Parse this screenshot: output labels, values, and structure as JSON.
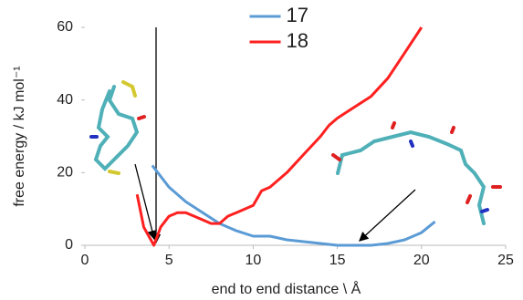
{
  "chart_data": {
    "type": "line",
    "xlabel": "end to end distance \\ Å",
    "ylabel": "free energy / kJ mol⁻¹",
    "xlim": [
      0,
      25
    ],
    "xticks": [
      0,
      5,
      10,
      15,
      20,
      25
    ],
    "ylim": [
      0,
      60
    ],
    "yticks": [
      0,
      20,
      40,
      60
    ],
    "legend": "upper center",
    "series": [
      {
        "name": "17",
        "color": "#5b9bd5",
        "x": [
          4.0,
          4.5,
          5,
          6,
          7,
          8,
          9,
          10,
          11,
          12,
          13,
          14,
          15,
          16,
          17,
          18,
          19,
          20,
          20.8
        ],
        "values": [
          22,
          19,
          16,
          12,
          9,
          6,
          4,
          2.5,
          2.5,
          1.5,
          1,
          0.5,
          0,
          0,
          0,
          0.5,
          1.5,
          3.5,
          6.5
        ]
      },
      {
        "name": "18",
        "color": "#ff2020",
        "x": [
          3.1,
          3.5,
          4.1,
          4.5,
          5,
          5.5,
          6,
          7,
          7.5,
          8,
          8.5,
          9,
          10,
          10.5,
          11,
          12,
          13,
          14,
          14.5,
          15,
          16,
          17,
          18,
          19,
          20
        ],
        "values": [
          14,
          5,
          0,
          5,
          8,
          9,
          9,
          7,
          6,
          6,
          8,
          9,
          11,
          15,
          16,
          20,
          25,
          30,
          33,
          35,
          38,
          41,
          46,
          53,
          60
        ]
      }
    ]
  }
}
